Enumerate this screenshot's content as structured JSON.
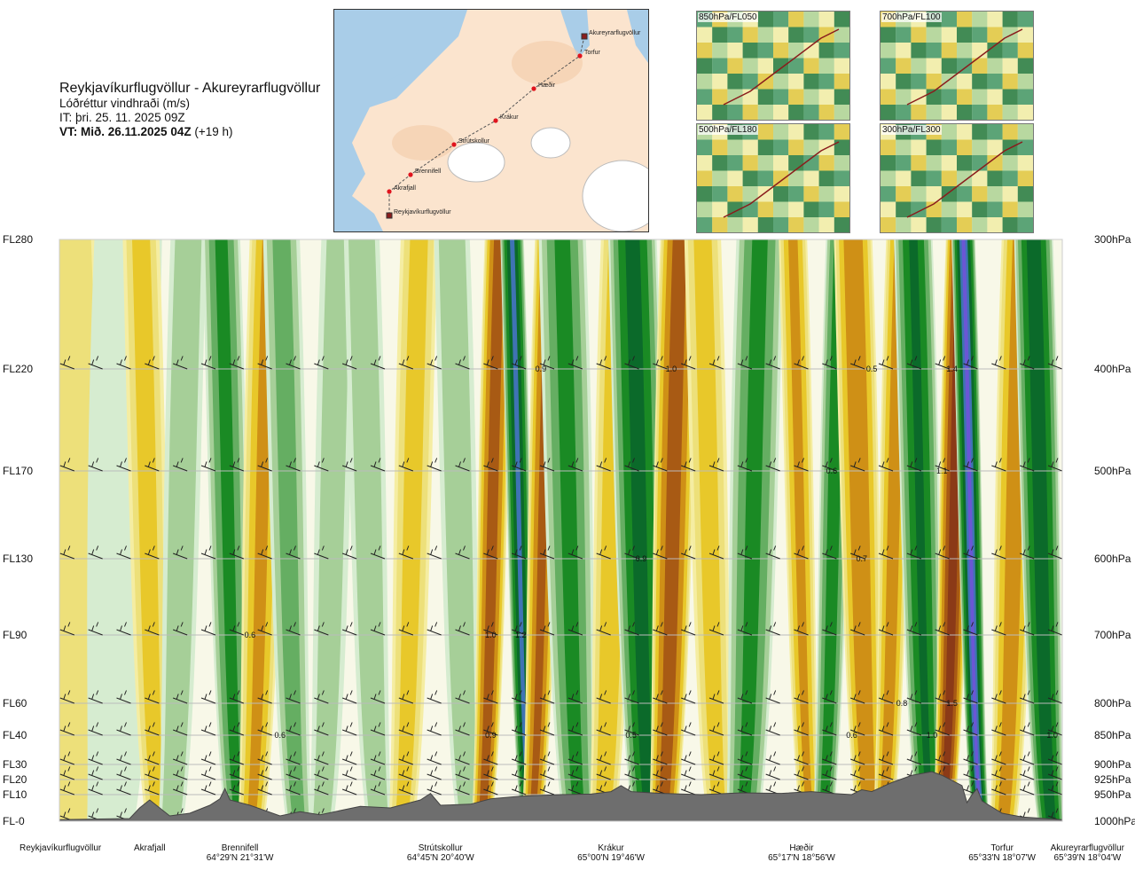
{
  "header": {
    "title": "Reykjavíkurflugvöllur - Akureyrarflugvöllur",
    "subtitle": "Lóðréttur vindhraði (m/s)",
    "issue_time": "IT: þri. 25. 11. 2025 09Z",
    "valid_time_label": "VT: Mið. 26.11.2025 04Z",
    "valid_time_offset": "(+19 h)"
  },
  "route_map": {
    "waypoints": [
      {
        "name": "Akureyrarflugvöllur"
      },
      {
        "name": "Torfur"
      },
      {
        "name": "Hæðir"
      },
      {
        "name": "Krákur"
      },
      {
        "name": "Strútskollur"
      },
      {
        "name": "Brennifell"
      },
      {
        "name": "Akrafjall"
      },
      {
        "name": "Reykjavíkurflugvöllur"
      }
    ]
  },
  "mini_maps": [
    {
      "label": "850hPa/FL050"
    },
    {
      "label": "700hPa/FL100"
    },
    {
      "label": "500hPa/FL180"
    },
    {
      "label": "300hPa/FL300"
    }
  ],
  "chart_data": {
    "type": "heatmap",
    "title": "Lóðréttur vindhraði (m/s)",
    "y_left_levels": [
      "FL280",
      "FL220",
      "FL170",
      "FL130",
      "FL90",
      "FL60",
      "FL40",
      "FL30",
      "FL20",
      "FL10",
      "FL-0"
    ],
    "y_right_levels": [
      "300hPa",
      "400hPa",
      "500hPa",
      "600hPa",
      "700hPa",
      "800hPa",
      "850hPa",
      "900hPa",
      "925hPa",
      "950hPa",
      "1000hPa"
    ],
    "pressure_hpa": [
      300,
      400,
      500,
      600,
      700,
      800,
      850,
      900,
      925,
      950,
      1000
    ],
    "route_fraction_domain": [
      0,
      1
    ],
    "locations": [
      {
        "name": "Reykjavíkurflugvöllur",
        "coord": "",
        "pos": 0.0
      },
      {
        "name": "Akrafjall",
        "coord": "",
        "pos": 0.09
      },
      {
        "name": "Brennifell",
        "coord": "64°29'N 21°31'W",
        "pos": 0.18
      },
      {
        "name": "Strútskollur",
        "coord": "64°45'N 20°40'W",
        "pos": 0.38
      },
      {
        "name": "Krákur",
        "coord": "65°00'N 19°46'W",
        "pos": 0.55
      },
      {
        "name": "Hæðir",
        "coord": "65°17'N 18°56'W",
        "pos": 0.74
      },
      {
        "name": "Torfur",
        "coord": "65°33'N 18°07'W",
        "pos": 0.94
      },
      {
        "name": "Akureyrarflugvöllur",
        "coord": "65°39'N 18°04'W",
        "pos": 1.0
      }
    ],
    "bands": [
      {
        "pos": 0.01,
        "value": 0.15,
        "w": 0.05
      },
      {
        "pos": 0.06,
        "value": -0.1,
        "w": 0.04
      },
      {
        "pos": 0.09,
        "value": 0.3,
        "w": 0.02
      },
      {
        "pos": 0.12,
        "value": -0.2,
        "w": 0.02
      },
      {
        "pos": 0.17,
        "value": -0.5,
        "w": 0.02
      },
      {
        "pos": 0.2,
        "value": 0.5,
        "w": 0.02
      },
      {
        "pos": 0.23,
        "value": -0.3,
        "w": 0.02
      },
      {
        "pos": 0.27,
        "value": -0.15,
        "w": 0.02
      },
      {
        "pos": 0.31,
        "value": -0.2,
        "w": 0.02
      },
      {
        "pos": 0.35,
        "value": 0.3,
        "w": 0.02
      },
      {
        "pos": 0.4,
        "value": -0.2,
        "w": 0.02
      },
      {
        "pos": 0.43,
        "value": 1.0,
        "w": 0.015
      },
      {
        "pos": 0.46,
        "value": -1.2,
        "w": 0.012
      },
      {
        "pos": 0.48,
        "value": 0.9,
        "w": 0.015
      },
      {
        "pos": 0.51,
        "value": -0.5,
        "w": 0.025
      },
      {
        "pos": 0.55,
        "value": 0.4,
        "w": 0.02
      },
      {
        "pos": 0.58,
        "value": -0.9,
        "w": 0.025
      },
      {
        "pos": 0.61,
        "value": 1.0,
        "w": 0.02
      },
      {
        "pos": 0.65,
        "value": 0.3,
        "w": 0.02
      },
      {
        "pos": 0.69,
        "value": -0.5,
        "w": 0.025
      },
      {
        "pos": 0.74,
        "value": 0.5,
        "w": 0.015
      },
      {
        "pos": 0.77,
        "value": -0.6,
        "w": 0.015
      },
      {
        "pos": 0.8,
        "value": 0.7,
        "w": 0.02
      },
      {
        "pos": 0.83,
        "value": 0.6,
        "w": 0.015
      },
      {
        "pos": 0.86,
        "value": -0.8,
        "w": 0.02
      },
      {
        "pos": 0.89,
        "value": 1.4,
        "w": 0.015
      },
      {
        "pos": 0.91,
        "value": -1.5,
        "w": 0.012
      },
      {
        "pos": 0.95,
        "value": 0.6,
        "w": 0.02
      },
      {
        "pos": 0.98,
        "value": -1.0,
        "w": 0.02
      }
    ],
    "value_labels": [
      {
        "text": "0.9",
        "pos": 0.48,
        "hpa": 400
      },
      {
        "text": "1.0",
        "pos": 0.61,
        "hpa": 400
      },
      {
        "text": "0.5",
        "pos": 0.81,
        "hpa": 400
      },
      {
        "text": "1.4",
        "pos": 0.89,
        "hpa": 400
      },
      {
        "text": "0.6",
        "pos": 0.77,
        "hpa": 500
      },
      {
        "text": "1.1",
        "pos": 0.88,
        "hpa": 500
      },
      {
        "text": "0.9",
        "pos": 0.58,
        "hpa": 600
      },
      {
        "text": "0.7",
        "pos": 0.8,
        "hpa": 600
      },
      {
        "text": "0.6",
        "pos": 0.19,
        "hpa": 700
      },
      {
        "text": "1.0",
        "pos": 0.43,
        "hpa": 700
      },
      {
        "text": "1.2",
        "pos": 0.46,
        "hpa": 700
      },
      {
        "text": "0.8",
        "pos": 0.84,
        "hpa": 800
      },
      {
        "text": "1.5",
        "pos": 0.89,
        "hpa": 800
      },
      {
        "text": "0.6",
        "pos": 0.22,
        "hpa": 850
      },
      {
        "text": "0.9",
        "pos": 0.43,
        "hpa": 850
      },
      {
        "text": "0.5",
        "pos": 0.57,
        "hpa": 850
      },
      {
        "text": "0.6",
        "pos": 0.79,
        "hpa": 850
      },
      {
        "text": "1.0",
        "pos": 0.87,
        "hpa": 850
      },
      {
        "text": "1.0",
        "pos": 0.99,
        "hpa": 850
      }
    ],
    "terrain_hpa": [
      [
        0.0,
        997
      ],
      [
        0.07,
        995
      ],
      [
        0.08,
        975
      ],
      [
        0.09,
        960
      ],
      [
        0.1,
        975
      ],
      [
        0.11,
        990
      ],
      [
        0.13,
        985
      ],
      [
        0.15,
        970
      ],
      [
        0.16,
        958
      ],
      [
        0.165,
        940
      ],
      [
        0.17,
        960
      ],
      [
        0.19,
        970
      ],
      [
        0.22,
        990
      ],
      [
        0.24,
        982
      ],
      [
        0.26,
        988
      ],
      [
        0.3,
        972
      ],
      [
        0.33,
        975
      ],
      [
        0.36,
        960
      ],
      [
        0.37,
        948
      ],
      [
        0.38,
        970
      ],
      [
        0.41,
        968
      ],
      [
        0.43,
        958
      ],
      [
        0.46,
        953
      ],
      [
        0.5,
        950
      ],
      [
        0.53,
        949
      ],
      [
        0.55,
        945
      ],
      [
        0.56,
        935
      ],
      [
        0.57,
        945
      ],
      [
        0.6,
        948
      ],
      [
        0.64,
        950
      ],
      [
        0.68,
        947
      ],
      [
        0.72,
        948
      ],
      [
        0.75,
        945
      ],
      [
        0.77,
        948
      ],
      [
        0.79,
        950
      ],
      [
        0.8,
        942
      ],
      [
        0.81,
        945
      ],
      [
        0.83,
        930
      ],
      [
        0.85,
        918
      ],
      [
        0.87,
        912
      ],
      [
        0.88,
        918
      ],
      [
        0.9,
        935
      ],
      [
        0.905,
        965
      ],
      [
        0.91,
        950
      ],
      [
        0.915,
        940
      ],
      [
        0.92,
        962
      ],
      [
        0.94,
        985
      ],
      [
        0.96,
        992
      ],
      [
        1.0,
        997
      ]
    ],
    "colorscale": [
      {
        "to": -1.3,
        "color": "#6a57d4"
      },
      {
        "to": -0.9,
        "color": "#3f73b4"
      },
      {
        "to": -0.6,
        "color": "#0b6a2a"
      },
      {
        "to": -0.35,
        "color": "#1a8a24"
      },
      {
        "to": -0.2,
        "color": "#65ae62"
      },
      {
        "to": -0.1,
        "color": "#a6cf98"
      },
      {
        "to": -0.03,
        "color": "#d6ecd0"
      },
      {
        "to": 0.03,
        "color": "#f8f8e8"
      },
      {
        "to": 0.1,
        "color": "#f5eda2"
      },
      {
        "to": 0.2,
        "color": "#ede07a"
      },
      {
        "to": 0.35,
        "color": "#e8c82a"
      },
      {
        "to": 0.6,
        "color": "#cf9016"
      },
      {
        "to": 0.9,
        "color": "#a85a14"
      },
      {
        "to": 1.3,
        "color": "#8b3a17"
      },
      {
        "to": 9,
        "color": "#921c1c"
      }
    ]
  }
}
